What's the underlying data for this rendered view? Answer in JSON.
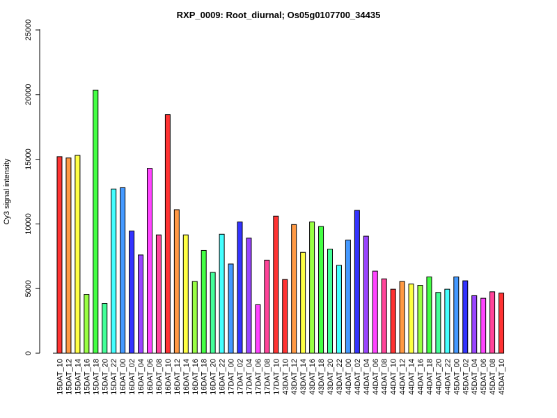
{
  "chart_data": {
    "type": "bar",
    "title": "RXP_0009: Root_diurnal; Os05g0107700_34435",
    "xlabel": "",
    "ylabel": "Cy3 signal intensity",
    "ylim": [
      0,
      25000
    ],
    "yticks": [
      0,
      5000,
      10000,
      15000,
      20000,
      25000
    ],
    "ytick_labels": [
      "0",
      "5000",
      "10000",
      "15000",
      "20000",
      "25000"
    ],
    "grid": false,
    "legend": "none",
    "categories": [
      "15DAT_10",
      "15DAT_12",
      "15DAT_14",
      "15DAT_16",
      "15DAT_18",
      "15DAT_20",
      "15DAT_22",
      "16DAT_00",
      "16DAT_02",
      "16DAT_04",
      "16DAT_06",
      "16DAT_08",
      "16DAT_10",
      "16DAT_12",
      "16DAT_14",
      "16DAT_16",
      "16DAT_18",
      "16DAT_20",
      "16DAT_22",
      "17DAT_00",
      "17DAT_02",
      "17DAT_04",
      "17DAT_06",
      "17DAT_08",
      "17DAT_10",
      "43DAT_10",
      "43DAT_12",
      "43DAT_14",
      "43DAT_16",
      "43DAT_18",
      "43DAT_20",
      "43DAT_22",
      "44DAT_00",
      "44DAT_02",
      "44DAT_04",
      "44DAT_06",
      "44DAT_08",
      "44DAT_10",
      "44DAT_12",
      "44DAT_14",
      "44DAT_16",
      "44DAT_18",
      "44DAT_20",
      "44DAT_22",
      "45DAT_00",
      "45DAT_02",
      "45DAT_04",
      "45DAT_06",
      "45DAT_08",
      "45DAT_10"
    ],
    "values": [
      15200,
      15100,
      15300,
      4550,
      20350,
      3850,
      12700,
      12800,
      9450,
      7600,
      14300,
      9150,
      18450,
      11100,
      9150,
      5550,
      7950,
      6250,
      9200,
      6900,
      10150,
      8900,
      3750,
      7200,
      10600,
      5700,
      9950,
      7800,
      10150,
      9800,
      8050,
      6800,
      8750,
      11050,
      9050,
      6350,
      5750,
      4950,
      5550,
      5350,
      5250,
      5900,
      4700,
      4950,
      5900,
      5600,
      4450,
      4250,
      4750,
      4650
    ],
    "colors": [
      "#ff3333",
      "#ff9944",
      "#ffff44",
      "#99ff44",
      "#44ff44",
      "#44ff99",
      "#44ffff",
      "#4499ff",
      "#3333ff",
      "#9944ff",
      "#ff44ff",
      "#ff4499",
      "#ff3333",
      "#ff9944",
      "#ffff44",
      "#99ff44",
      "#44ff44",
      "#44ff99",
      "#44ffff",
      "#4499ff",
      "#3333ff",
      "#9944ff",
      "#ff44ff",
      "#ff4499",
      "#ff3333",
      "#ff3333",
      "#ff9944",
      "#ffff44",
      "#99ff44",
      "#44ff44",
      "#44ff99",
      "#44ffff",
      "#4499ff",
      "#3333ff",
      "#9944ff",
      "#ff44ff",
      "#ff4499",
      "#ff3333",
      "#ff9944",
      "#ffff44",
      "#99ff44",
      "#44ff44",
      "#44ff99",
      "#44ffff",
      "#4499ff",
      "#3333ff",
      "#9944ff",
      "#ff44ff",
      "#ff4499",
      "#ff3333"
    ]
  }
}
